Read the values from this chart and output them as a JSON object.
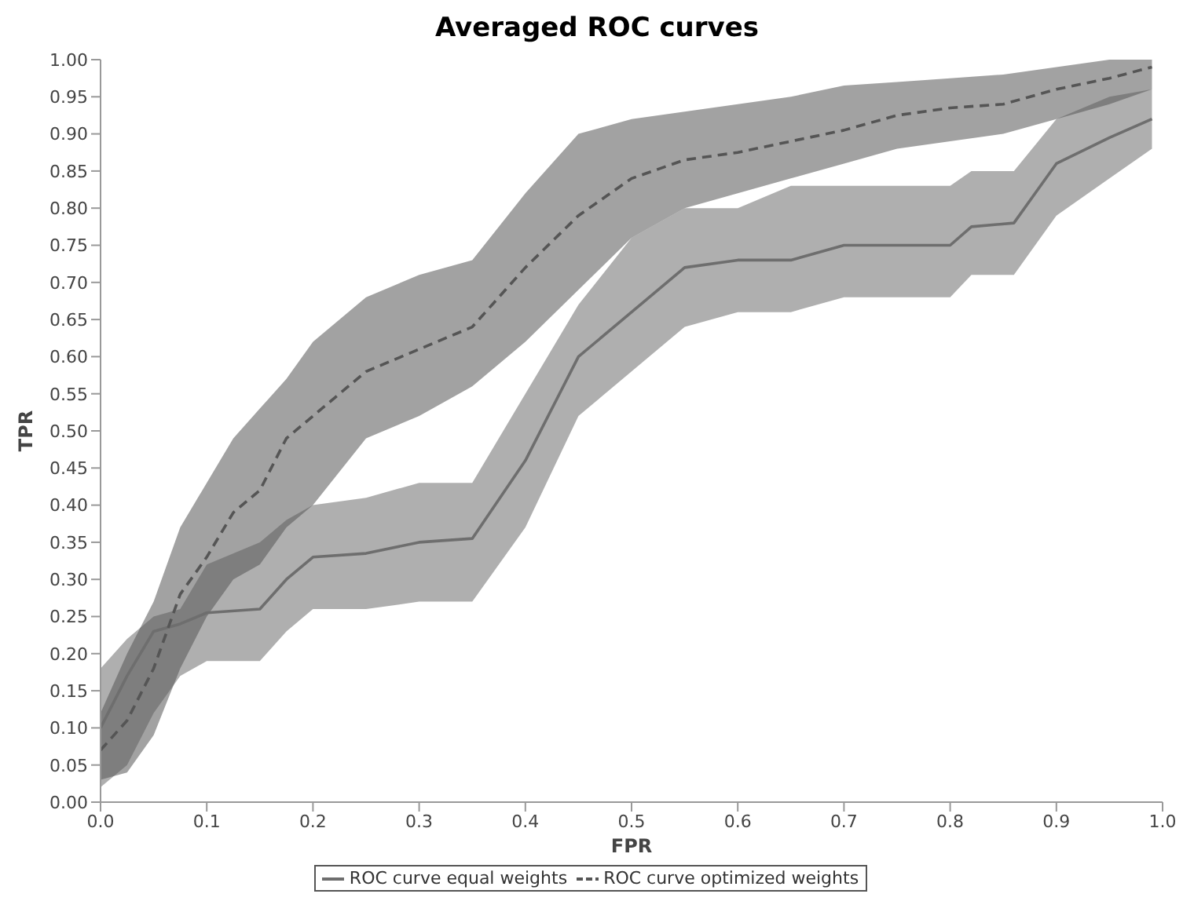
{
  "chart_data": {
    "type": "line",
    "title": "Averaged ROC curves",
    "xlabel": "FPR",
    "ylabel": "TPR",
    "xlim": [
      0,
      1
    ],
    "xticks": [
      {
        "value": 0,
        "label": "0.0"
      },
      0.1,
      0.2,
      0.3,
      0.4,
      0.5,
      0.6,
      0.7,
      0.8,
      0.9,
      {
        "value": 1,
        "label": "1.0"
      }
    ],
    "ylim": [
      0,
      1
    ],
    "yticks": [
      {
        "value": 0,
        "label": "0.00"
      },
      0.05,
      {
        "value": 0.1,
        "label": "0.10"
      },
      0.15,
      {
        "value": 0.2,
        "label": "0.20"
      },
      0.25,
      {
        "value": 0.3,
        "label": "0.30"
      },
      0.35,
      {
        "value": 0.4,
        "label": "0.40"
      },
      0.45,
      {
        "value": 0.5,
        "label": "0.50"
      },
      0.55,
      {
        "value": 0.6,
        "label": "0.60"
      },
      0.65,
      {
        "value": 0.7,
        "label": "0.70"
      },
      0.75,
      {
        "value": 0.8,
        "label": "0.80"
      },
      0.85,
      {
        "value": 0.9,
        "label": "0.90"
      },
      0.95,
      {
        "value": 1,
        "label": "1.00"
      }
    ],
    "grid": false,
    "legend": "bottom",
    "marker": "none",
    "series": [
      {
        "name": "ROC curve equal weights",
        "color": "#6e6e6e",
        "line_style": "solid",
        "x": [
          0,
          0.025,
          0.05,
          0.075,
          0.1,
          0.15,
          0.175,
          0.2,
          0.25,
          0.3,
          0.35,
          0.4,
          0.45,
          0.5,
          0.55,
          0.6,
          0.65,
          0.7,
          0.8,
          0.82,
          0.86,
          0.9,
          0.95,
          0.99
        ],
        "values": [
          0.1,
          0.17,
          0.23,
          0.24,
          0.255,
          0.26,
          0.3,
          0.33,
          0.335,
          0.35,
          0.355,
          0.46,
          0.6,
          0.66,
          0.72,
          0.73,
          0.73,
          0.75,
          0.75,
          0.775,
          0.78,
          0.86,
          0.895,
          0.92
        ],
        "lower": [
          0.02,
          0.05,
          0.12,
          0.17,
          0.19,
          0.19,
          0.23,
          0.26,
          0.26,
          0.27,
          0.27,
          0.37,
          0.52,
          0.58,
          0.64,
          0.66,
          0.66,
          0.68,
          0.68,
          0.71,
          0.71,
          0.79,
          0.84,
          0.88
        ],
        "upper": [
          0.18,
          0.22,
          0.25,
          0.26,
          0.32,
          0.35,
          0.38,
          0.4,
          0.41,
          0.43,
          0.43,
          0.55,
          0.67,
          0.76,
          0.8,
          0.8,
          0.83,
          0.83,
          0.83,
          0.85,
          0.85,
          0.92,
          0.95,
          0.96
        ]
      },
      {
        "name": "ROC curve optimized weights",
        "color": "#555555",
        "line_style": "dashed",
        "x": [
          0,
          0.025,
          0.05,
          0.075,
          0.1,
          0.125,
          0.15,
          0.175,
          0.2,
          0.25,
          0.3,
          0.35,
          0.4,
          0.45,
          0.5,
          0.55,
          0.6,
          0.65,
          0.7,
          0.75,
          0.8,
          0.85,
          0.9,
          0.95,
          0.99
        ],
        "values": [
          0.07,
          0.11,
          0.18,
          0.28,
          0.33,
          0.39,
          0.42,
          0.49,
          0.52,
          0.58,
          0.61,
          0.64,
          0.72,
          0.79,
          0.84,
          0.865,
          0.875,
          0.89,
          0.905,
          0.925,
          0.935,
          0.94,
          0.96,
          0.975,
          0.99
        ],
        "lower": [
          0.03,
          0.04,
          0.09,
          0.18,
          0.25,
          0.3,
          0.32,
          0.37,
          0.4,
          0.49,
          0.52,
          0.56,
          0.62,
          0.69,
          0.76,
          0.8,
          0.82,
          0.84,
          0.86,
          0.88,
          0.89,
          0.9,
          0.92,
          0.94,
          0.96
        ],
        "upper": [
          0.12,
          0.2,
          0.27,
          0.37,
          0.43,
          0.49,
          0.53,
          0.57,
          0.62,
          0.68,
          0.71,
          0.73,
          0.82,
          0.9,
          0.92,
          0.93,
          0.94,
          0.95,
          0.965,
          0.97,
          0.975,
          0.98,
          0.99,
          1,
          1
        ]
      }
    ]
  }
}
